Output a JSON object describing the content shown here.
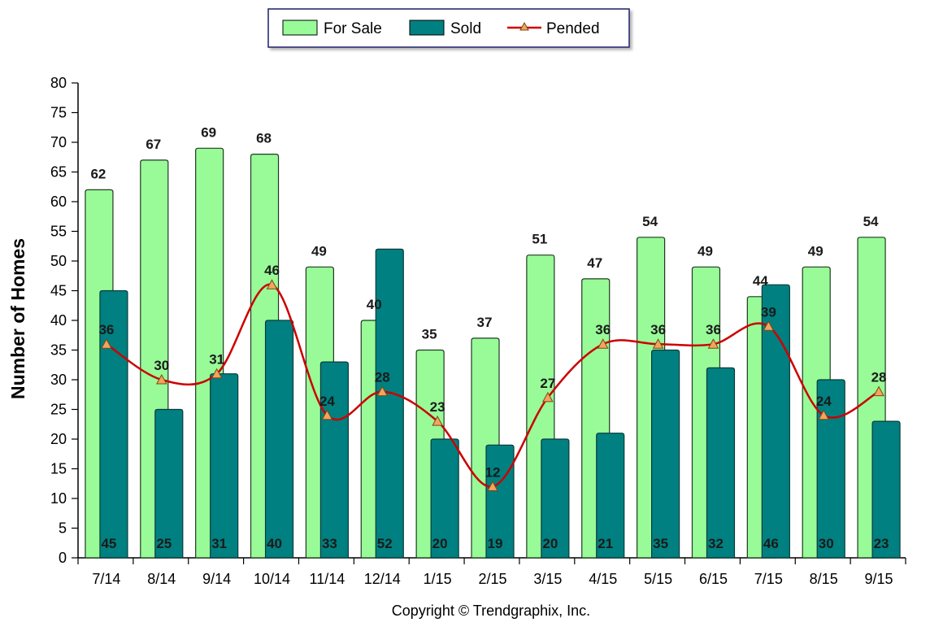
{
  "chart_data": {
    "type": "bar",
    "categories": [
      "7/14",
      "8/14",
      "9/14",
      "10/14",
      "11/14",
      "12/14",
      "1/15",
      "2/15",
      "3/15",
      "4/15",
      "5/15",
      "6/15",
      "7/15",
      "8/15",
      "9/15"
    ],
    "series": [
      {
        "name": "For Sale",
        "type": "bar",
        "color": "#98fb98",
        "values": [
          62,
          67,
          69,
          68,
          49,
          40,
          35,
          37,
          51,
          47,
          54,
          49,
          44,
          49,
          54
        ]
      },
      {
        "name": "Sold",
        "type": "bar",
        "color": "#008080",
        "values": [
          45,
          25,
          31,
          40,
          33,
          52,
          20,
          19,
          20,
          21,
          35,
          32,
          46,
          30,
          23
        ]
      },
      {
        "name": "Pended",
        "type": "line",
        "color": "#cc0000",
        "marker_color": "#f4a460",
        "values": [
          36,
          30,
          31,
          46,
          24,
          28,
          23,
          12,
          27,
          36,
          36,
          36,
          39,
          24,
          28
        ]
      }
    ],
    "ylabel": "Number of Homes",
    "xlabel": "",
    "ylim": [
      0,
      80
    ],
    "yticks": [
      0,
      5,
      10,
      15,
      20,
      25,
      30,
      35,
      40,
      45,
      50,
      55,
      60,
      65,
      70,
      75,
      80
    ],
    "legend_position": "top-center",
    "grid": false
  },
  "footer": {
    "copyright": "Copyright © Trendgraphix, Inc."
  }
}
